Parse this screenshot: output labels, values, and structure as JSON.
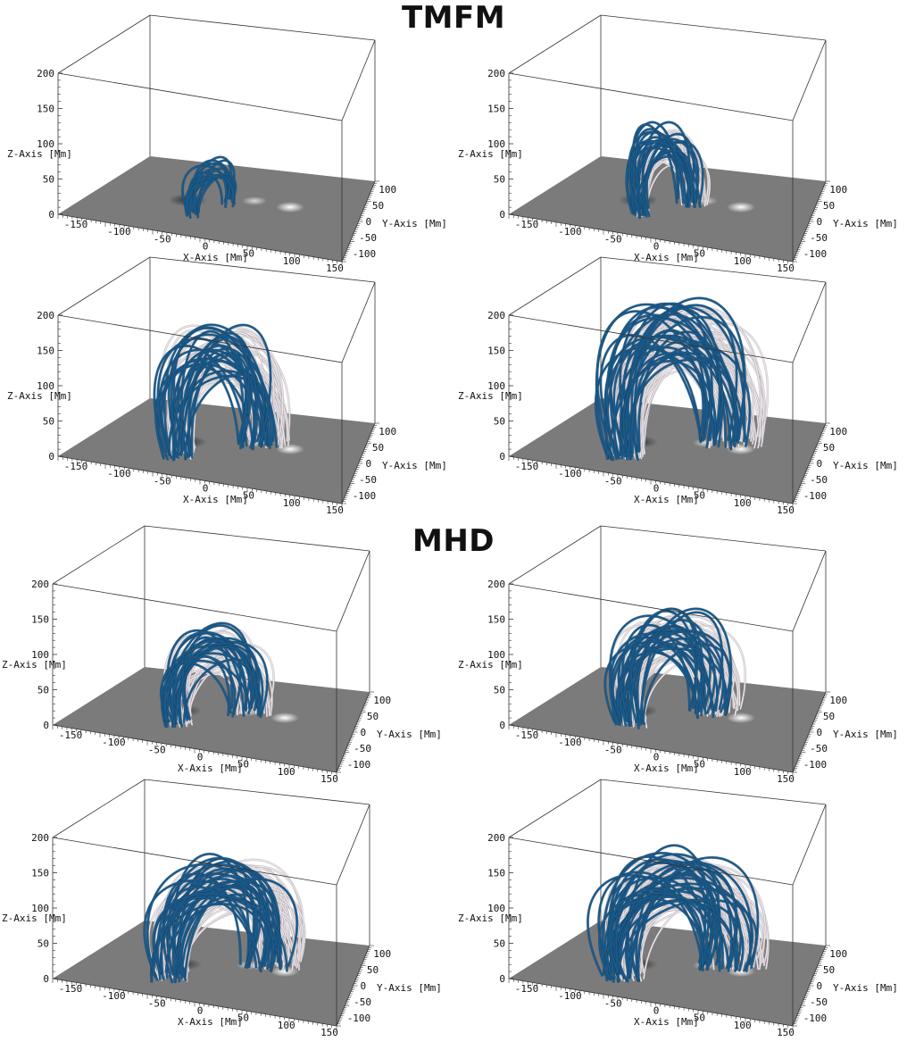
{
  "sections": [
    {
      "title": "TMFM"
    },
    {
      "title": "MHD"
    }
  ],
  "axes": {
    "z_label": "Z-Axis [Mm]",
    "x_label": "X-Axis [Mm]",
    "y_label": "Y-Axis [Mm]",
    "z_ticks": [
      "0",
      "50",
      "100",
      "150",
      "200"
    ],
    "x_ticks": [
      "-150",
      "-100",
      "-50",
      "0",
      "50",
      "100",
      "150"
    ],
    "y_ticks": [
      "100",
      "50",
      "0",
      "-50",
      "-100"
    ]
  },
  "colors": {
    "blue_lines": "#1b5a8a",
    "white_lines": "#e8e4e8",
    "white_shadow": "#8a7f86",
    "magnetogram": "#7b7b7b"
  },
  "panels": [
    {
      "id": "tmfm-1",
      "section": "TMFM",
      "blue_count": 14,
      "white_count": 0,
      "height": 0.35,
      "spread": 0.45
    },
    {
      "id": "tmfm-2",
      "section": "TMFM",
      "blue_count": 22,
      "white_count": 26,
      "height": 0.6,
      "spread": 0.6
    },
    {
      "id": "tmfm-3",
      "section": "TMFM",
      "blue_count": 26,
      "white_count": 40,
      "height": 0.95,
      "spread": 1.0
    },
    {
      "id": "tmfm-4",
      "section": "TMFM",
      "blue_count": 30,
      "white_count": 55,
      "height": 1.1,
      "spread": 1.25
    },
    {
      "id": "mhd-1",
      "section": "MHD",
      "blue_count": 22,
      "white_count": 40,
      "height": 0.68,
      "spread": 0.85
    },
    {
      "id": "mhd-2",
      "section": "MHD",
      "blue_count": 26,
      "white_count": 45,
      "height": 0.8,
      "spread": 1.0
    },
    {
      "id": "mhd-3",
      "section": "MHD",
      "blue_count": 30,
      "white_count": 55,
      "height": 0.85,
      "spread": 1.2
    },
    {
      "id": "mhd-4",
      "section": "MHD",
      "blue_count": 34,
      "white_count": 60,
      "height": 0.9,
      "spread": 1.3
    }
  ]
}
